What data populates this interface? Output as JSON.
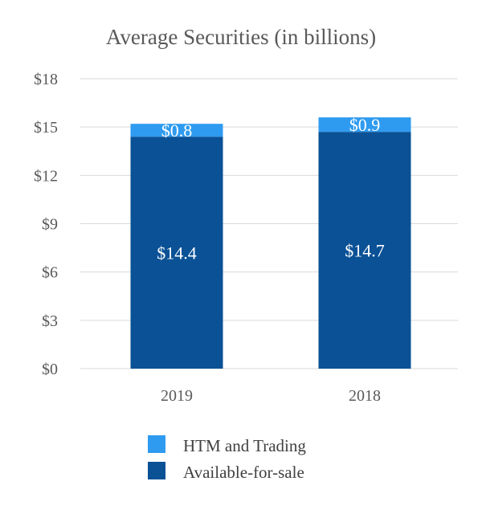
{
  "chart_data": {
    "type": "bar",
    "stacked": true,
    "title": "Average Securities (in billions)",
    "categories": [
      "2019",
      "2018"
    ],
    "series": [
      {
        "name": "Available-for-sale",
        "values": [
          14.4,
          14.7
        ],
        "color": "#0a5196",
        "labels": [
          "$14.4",
          "$14.7"
        ]
      },
      {
        "name": "HTM and Trading",
        "values": [
          0.8,
          0.9
        ],
        "color": "#2e9bf0",
        "labels": [
          "$0.8",
          "$0.9"
        ]
      }
    ],
    "y_ticks": [
      "$0",
      "$3",
      "$6",
      "$9",
      "$12",
      "$15",
      "$18"
    ],
    "ylim": [
      0,
      18
    ],
    "grid": true,
    "legend": {
      "position": "bottom",
      "entries": [
        "HTM and Trading",
        "Available-for-sale"
      ]
    }
  }
}
